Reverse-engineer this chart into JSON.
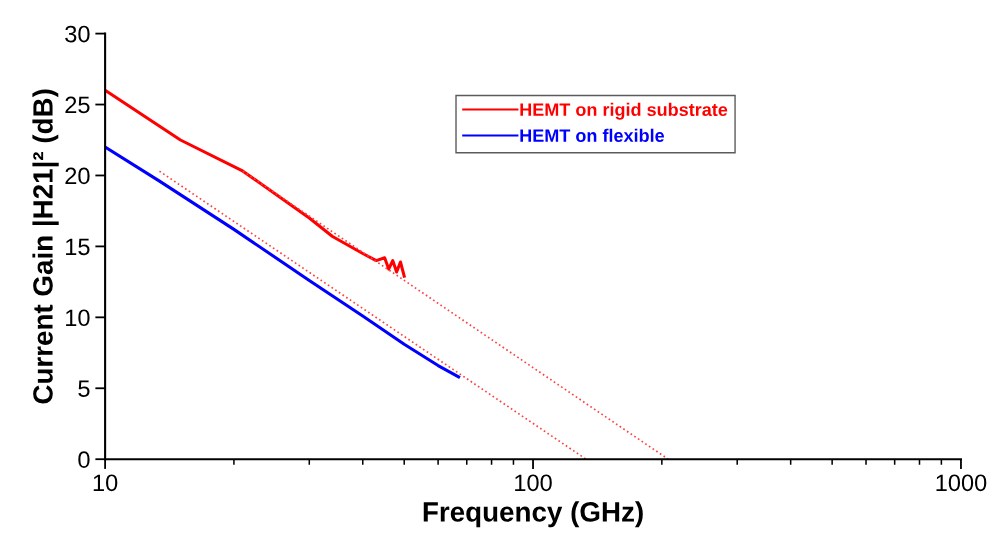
{
  "chart_data": {
    "type": "line",
    "xlabel": "Frequency (GHz)",
    "ylabel": "Current Gain |H21|² (dB)",
    "log": "x",
    "xlim": [
      10,
      1000
    ],
    "xticks": [
      10,
      100,
      1000
    ],
    "ylim": [
      0,
      30
    ],
    "yticks": [
      0,
      5,
      10,
      15,
      20,
      25,
      30
    ],
    "grid": false,
    "legend": "top right",
    "series": [
      {
        "name": "HEMT on rigid substrate",
        "color": "#ff0000",
        "x": [
          10,
          15,
          21,
          30,
          34,
          40,
          43,
          45,
          46,
          47,
          48,
          49,
          50
        ],
        "values": [
          26,
          22.5,
          20.3,
          17,
          15.7,
          14.5,
          14.0,
          14.2,
          13.4,
          14.0,
          13.2,
          13.9,
          12.9
        ]
      },
      {
        "name": "HEMT on flexible",
        "color": "#0000ff",
        "x": [
          10,
          13.4,
          20,
          30,
          40,
          50,
          60,
          67
        ],
        "values": [
          22,
          19.6,
          16.2,
          12.6,
          10.1,
          8.1,
          6.6,
          5.8
        ]
      },
      {
        "color": "#ff4040",
        "line_style": "dotted",
        "x": [
          21,
          207
        ],
        "values": [
          20.3,
          0
        ]
      },
      {
        "color": "#ff4040",
        "line_style": "dotted",
        "x": [
          13.4,
          133
        ],
        "values": [
          20.3,
          0
        ]
      }
    ]
  }
}
